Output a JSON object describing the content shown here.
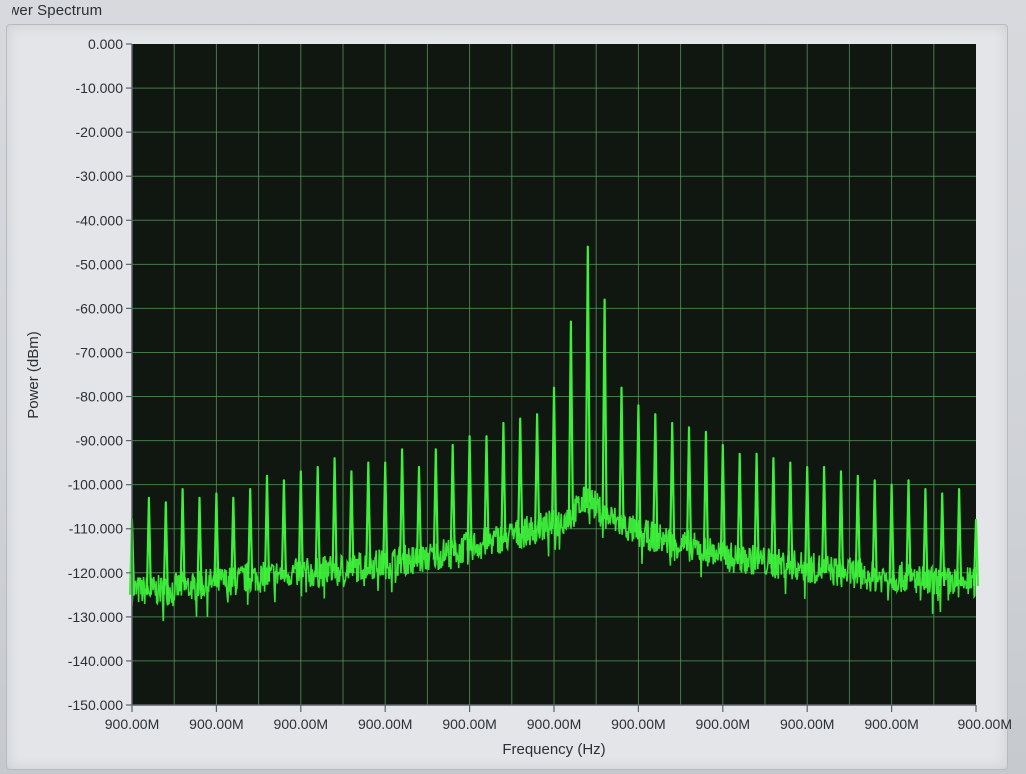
{
  "window": {
    "title": "ower Spectrum"
  },
  "chart_data": {
    "type": "line",
    "title": "ower Spectrum",
    "xlabel": "Frequency (Hz)",
    "ylabel": "Power (dBm)",
    "ylim": [
      -150,
      0
    ],
    "y_ticks": [
      "0.000",
      "-10.000",
      "-20.000",
      "-30.000",
      "-40.000",
      "-50.000",
      "-60.000",
      "-70.000",
      "-80.000",
      "-90.000",
      "-100.000",
      "-110.000",
      "-120.000",
      "-130.000",
      "-140.000",
      "-150.000"
    ],
    "x_ticks": [
      "900.00M",
      "900.00M",
      "900.00M",
      "900.00M",
      "900.00M",
      "900.00M",
      "900.00M",
      "900.00M",
      "900.00M",
      "900.00M",
      "900.00M"
    ],
    "grid": true,
    "colors": {
      "plot_background": "#0f1710",
      "grid": "#5a9a5e",
      "trace": "#3ef03a"
    },
    "series": [
      {
        "peaks_dBm": [
          -108,
          -103,
          -104,
          -101,
          -103,
          -102,
          -103,
          -101,
          -98,
          -99,
          -97,
          -96,
          -94,
          -97,
          -95,
          -95,
          -92,
          -96,
          -92,
          -91,
          -89,
          -89,
          -86,
          -85,
          -84,
          -78,
          -63,
          -46,
          -58,
          -78,
          -82,
          -84,
          -86,
          -87,
          -88,
          -91,
          -93,
          -93,
          -94,
          -95,
          -96,
          -96,
          -97,
          -98,
          -99,
          -100,
          -99,
          -101,
          -102,
          -101,
          -108
        ],
        "noise_floor_dBm": [
          -124,
          -124,
          -124,
          -123,
          -123,
          -122,
          -122,
          -121,
          -121,
          -120,
          -120,
          -120,
          -119,
          -119,
          -118,
          -118,
          -117,
          -117,
          -116,
          -115,
          -114,
          -113,
          -112,
          -111,
          -110,
          -109,
          -107,
          -103,
          -107,
          -109,
          -111,
          -112,
          -113,
          -114,
          -115,
          -116,
          -117,
          -117,
          -118,
          -118,
          -119,
          -119,
          -120,
          -120,
          -121,
          -121,
          -121,
          -122,
          -122,
          -122,
          -122
        ]
      }
    ]
  }
}
